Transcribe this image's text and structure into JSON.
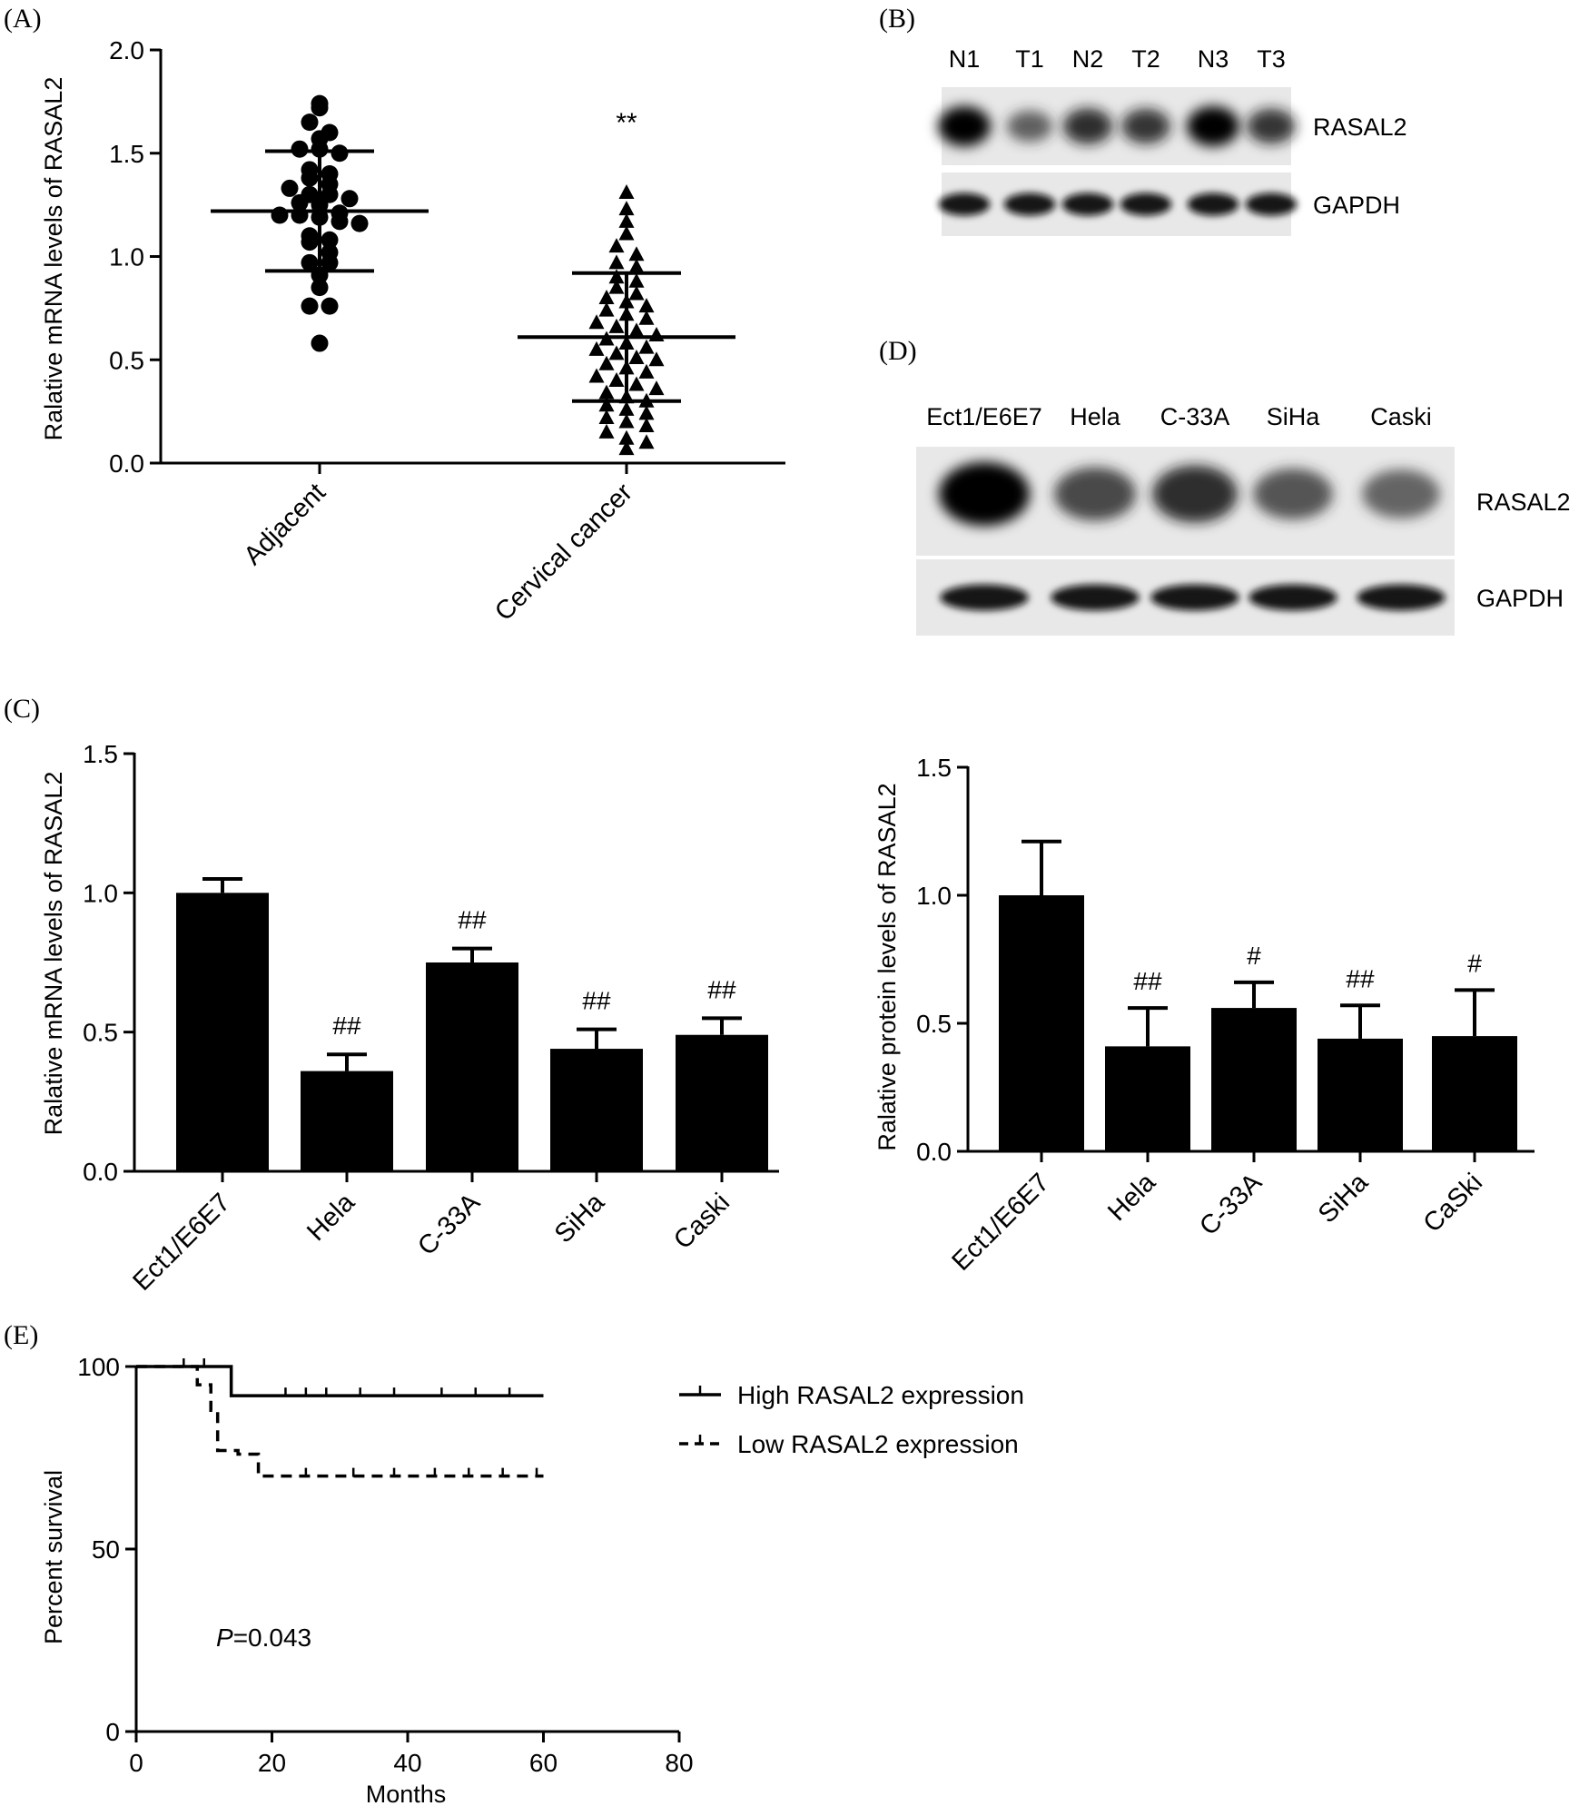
{
  "panels": {
    "A": {
      "label": "(A)"
    },
    "B": {
      "label": "(B)"
    },
    "C": {
      "label": "(C)"
    },
    "D": {
      "label": "(D)"
    },
    "E": {
      "label": "(E)"
    }
  },
  "chart_data": [
    {
      "id": "A",
      "type": "scatter",
      "ylabel": "Ralative mRNA levels of RASAL2",
      "ylim": [
        0,
        2.0
      ],
      "yticks": [
        "0.0",
        "0.5",
        "1.0",
        "1.5",
        "2.0"
      ],
      "categories": [
        "Adjacent",
        "Cervical cancer"
      ],
      "significance": [
        "",
        "**"
      ],
      "groups": [
        {
          "category": "Adjacent",
          "marker": "circle",
          "mean": 1.22,
          "sd_upper": 1.51,
          "sd_lower": 0.93,
          "values": [
            1.74,
            1.72,
            1.65,
            1.6,
            1.57,
            1.52,
            1.52,
            1.5,
            1.42,
            1.4,
            1.38,
            1.35,
            1.33,
            1.3,
            1.3,
            1.28,
            1.26,
            1.25,
            1.21,
            1.2,
            1.2,
            1.19,
            1.17,
            1.16,
            1.1,
            1.08,
            1.07,
            1.02,
            0.97,
            0.97,
            0.91,
            0.85,
            0.76,
            0.76,
            0.58
          ]
        },
        {
          "category": "Cervical cancer",
          "marker": "triangle",
          "mean": 0.61,
          "sd_upper": 0.92,
          "sd_lower": 0.3,
          "values": [
            1.31,
            1.23,
            1.17,
            1.11,
            1.05,
            1.01,
            0.97,
            0.95,
            0.9,
            0.88,
            0.85,
            0.82,
            0.8,
            0.78,
            0.76,
            0.74,
            0.72,
            0.7,
            0.68,
            0.66,
            0.64,
            0.62,
            0.6,
            0.58,
            0.56,
            0.55,
            0.53,
            0.51,
            0.5,
            0.48,
            0.46,
            0.44,
            0.42,
            0.4,
            0.38,
            0.36,
            0.34,
            0.32,
            0.3,
            0.28,
            0.26,
            0.24,
            0.22,
            0.2,
            0.18,
            0.15,
            0.12,
            0.1,
            0.07
          ]
        }
      ]
    },
    {
      "id": "C-mRNA",
      "type": "bar",
      "ylabel": "Ralative mRNA levels of RASAL2",
      "ylim": [
        0,
        1.5
      ],
      "yticks": [
        "0.0",
        "0.5",
        "1.0",
        "1.5"
      ],
      "categories": [
        "Ect1/E6E7",
        "Hela",
        "C-33A",
        "SiHa",
        "Caski"
      ],
      "values": [
        1.0,
        0.36,
        0.75,
        0.44,
        0.49
      ],
      "errors": [
        0.05,
        0.06,
        0.05,
        0.07,
        0.06
      ],
      "significance": [
        "",
        "##",
        "##",
        "##",
        "##"
      ]
    },
    {
      "id": "C-protein",
      "type": "bar",
      "ylabel": "Ralative protein levels of RASAL2",
      "ylim": [
        0,
        1.5
      ],
      "yticks": [
        "0.0",
        "0.5",
        "1.0",
        "1.5"
      ],
      "categories": [
        "Ect1/E6E7",
        "Hela",
        "C-33A",
        "SiHa",
        "CaSki"
      ],
      "values": [
        1.0,
        0.41,
        0.56,
        0.44,
        0.45
      ],
      "errors": [
        0.21,
        0.15,
        0.1,
        0.13,
        0.18
      ],
      "significance": [
        "",
        "##",
        "#",
        "##",
        "#"
      ]
    },
    {
      "id": "E",
      "type": "line",
      "subtype": "kaplan-meier",
      "xlabel": "Months",
      "ylabel": "Percent survival",
      "xlim": [
        0,
        80
      ],
      "ylim": [
        0,
        100
      ],
      "xticks": [
        "0",
        "20",
        "40",
        "60",
        "80"
      ],
      "yticks": [
        "0",
        "50",
        "100"
      ],
      "annotation": {
        "p_symbol": "P",
        "p_text": "=0.043"
      },
      "series": [
        {
          "name": "High RASAL2 expression",
          "style": "solid",
          "steps": [
            [
              0,
              100
            ],
            [
              14,
              100
            ],
            [
              14,
              92
            ],
            [
              60,
              92
            ]
          ],
          "censor": [
            7,
            10,
            22,
            25,
            28,
            33,
            38,
            45,
            50,
            55
          ]
        },
        {
          "name": "Low RASAL2 expression",
          "style": "dashed",
          "steps": [
            [
              0,
              100
            ],
            [
              9,
              100
            ],
            [
              9,
              95
            ],
            [
              11,
              95
            ],
            [
              11,
              88
            ],
            [
              12,
              88
            ],
            [
              12,
              77
            ],
            [
              15,
              77
            ],
            [
              15,
              76
            ],
            [
              18,
              76
            ],
            [
              18,
              70
            ],
            [
              60,
              70
            ]
          ],
          "censor": [
            25,
            32,
            38,
            44,
            49,
            54,
            59
          ]
        }
      ]
    }
  ],
  "blots": {
    "B": {
      "lanes": [
        "N1",
        "T1",
        "N2",
        "T2",
        "N3",
        "T3"
      ],
      "rows": [
        "RASAL2",
        "GAPDH"
      ],
      "intensity": {
        "RASAL2": [
          1.0,
          0.45,
          0.75,
          0.7,
          1.0,
          0.7
        ],
        "GAPDH": [
          0.9,
          0.9,
          0.9,
          0.9,
          0.9,
          0.9
        ]
      }
    },
    "D": {
      "lanes": [
        "Ect1/E6E7",
        "Hela",
        "C-33A",
        "SiHa",
        "Caski"
      ],
      "rows": [
        "RASAL2",
        "GAPDH"
      ],
      "intensity": {
        "RASAL2": [
          1.0,
          0.6,
          0.75,
          0.5,
          0.42
        ],
        "GAPDH": [
          0.9,
          0.9,
          0.9,
          0.9,
          0.9
        ]
      }
    }
  }
}
